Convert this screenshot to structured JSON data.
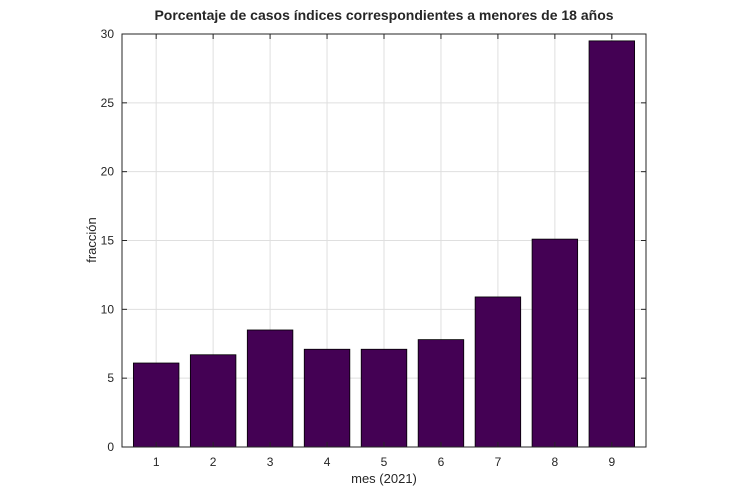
{
  "chart_data": {
    "type": "bar",
    "title": "Porcentaje de casos índices correspondientes a menores de 18 años",
    "xlabel": "mes (2021)",
    "ylabel": "fracción",
    "categories": [
      "1",
      "2",
      "3",
      "4",
      "5",
      "6",
      "7",
      "8",
      "9"
    ],
    "values": [
      6.1,
      6.7,
      8.5,
      7.1,
      7.1,
      7.8,
      10.9,
      15.1,
      29.5
    ],
    "ylim": [
      0,
      30
    ],
    "yticks": [
      0,
      5,
      10,
      15,
      20,
      25,
      30
    ],
    "grid": true,
    "bar_color": "#440154"
  }
}
